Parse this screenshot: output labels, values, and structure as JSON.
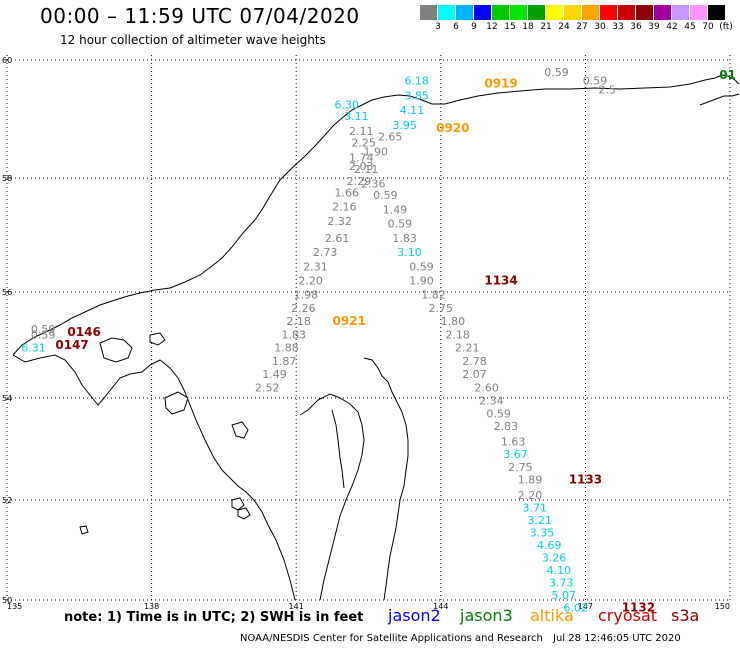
{
  "header": {
    "title": "00:00 – 11:59 UTC 07/04/2020",
    "subtitle": "12 hour collection of altimeter wave heights"
  },
  "colorbar": {
    "colors": [
      "#808080",
      "#00ffff",
      "#00b4ff",
      "#0000ff",
      "#00c800",
      "#00e600",
      "#00a000",
      "#ffff00",
      "#ffd700",
      "#ffa500",
      "#ff0000",
      "#c80000",
      "#8b0000",
      "#a000a0",
      "#c896ff",
      "#ff96ff",
      "#000000"
    ],
    "labels": [
      "3",
      "6",
      "9",
      "12",
      "15",
      "18",
      "21",
      "24",
      "27",
      "30",
      "33",
      "36",
      "39",
      "42",
      "45",
      "70",
      "(ft)"
    ]
  },
  "map": {
    "lat_labels": [
      "60",
      "58",
      "56",
      "54",
      "52",
      "50"
    ],
    "lon_labels": [
      "135",
      "138",
      "141",
      "144",
      "147",
      "150"
    ],
    "track_colors": {
      "gray": "#808080",
      "cyan": "#00d0e8",
      "orange": "#ff9900",
      "darkred": "#8b0000",
      "green": "#008000"
    },
    "points": [
      {
        "lon": 146.4,
        "lat": 59.8,
        "value": "0.59",
        "color": "gray"
      },
      {
        "lon": 147.2,
        "lat": 59.65,
        "value": "0.59",
        "color": "gray"
      },
      {
        "lon": 147.45,
        "lat": 59.5,
        "value": "2.5",
        "color": "gray"
      },
      {
        "lon": 143.5,
        "lat": 59.65,
        "value": "6.18",
        "color": "cyan"
      },
      {
        "lon": 143.5,
        "lat": 59.4,
        "value": "3.85",
        "color": "cyan"
      },
      {
        "lon": 143.4,
        "lat": 59.15,
        "value": "4.11",
        "color": "cyan"
      },
      {
        "lon": 142.05,
        "lat": 59.25,
        "value": "6.30",
        "color": "cyan"
      },
      {
        "lon": 142.25,
        "lat": 59.05,
        "value": "3.11",
        "color": "cyan"
      },
      {
        "lon": 143.25,
        "lat": 58.9,
        "value": "3.95",
        "color": "cyan"
      },
      {
        "lon": 142.35,
        "lat": 58.8,
        "value": "2.11",
        "color": "gray"
      },
      {
        "lon": 142.95,
        "lat": 58.7,
        "value": "2.65",
        "color": "gray"
      },
      {
        "lon": 142.4,
        "lat": 58.6,
        "value": "2.25",
        "color": "gray"
      },
      {
        "lon": 142.65,
        "lat": 58.45,
        "value": "1.90",
        "color": "gray"
      },
      {
        "lon": 142.35,
        "lat": 58.35,
        "value": "1.74",
        "color": "gray"
      },
      {
        "lon": 142.35,
        "lat": 58.2,
        "value": "2.03",
        "color": "gray"
      },
      {
        "lon": 142.45,
        "lat": 58.15,
        "value": "2.11",
        "color": "gray"
      },
      {
        "lon": 142.3,
        "lat": 57.95,
        "value": "2.29",
        "color": "gray"
      },
      {
        "lon": 142.6,
        "lat": 57.9,
        "value": "2.36",
        "color": "gray"
      },
      {
        "lon": 142.05,
        "lat": 57.75,
        "value": "1.66",
        "color": "gray"
      },
      {
        "lon": 142.85,
        "lat": 57.7,
        "value": "0.59",
        "color": "gray"
      },
      {
        "lon": 142.0,
        "lat": 57.5,
        "value": "2.16",
        "color": "gray"
      },
      {
        "lon": 143.05,
        "lat": 57.45,
        "value": "1.49",
        "color": "gray"
      },
      {
        "lon": 141.9,
        "lat": 57.25,
        "value": "2.32",
        "color": "gray"
      },
      {
        "lon": 143.15,
        "lat": 57.2,
        "value": "0.59",
        "color": "gray"
      },
      {
        "lon": 141.85,
        "lat": 56.95,
        "value": "2.61",
        "color": "gray"
      },
      {
        "lon": 143.25,
        "lat": 56.95,
        "value": "1.83",
        "color": "gray"
      },
      {
        "lon": 141.6,
        "lat": 56.7,
        "value": "2.73",
        "color": "gray"
      },
      {
        "lon": 143.35,
        "lat": 56.7,
        "value": "3.10",
        "color": "cyan"
      },
      {
        "lon": 141.4,
        "lat": 56.45,
        "value": "2.31",
        "color": "gray"
      },
      {
        "lon": 143.6,
        "lat": 56.45,
        "value": "0.59",
        "color": "gray"
      },
      {
        "lon": 141.3,
        "lat": 56.2,
        "value": "2.20",
        "color": "gray"
      },
      {
        "lon": 143.6,
        "lat": 56.2,
        "value": "1.90",
        "color": "gray"
      },
      {
        "lon": 141.2,
        "lat": 55.95,
        "value": "1.98",
        "color": "gray"
      },
      {
        "lon": 143.85,
        "lat": 55.95,
        "value": "1.82",
        "color": "gray"
      },
      {
        "lon": 141.15,
        "lat": 55.7,
        "value": "2.26",
        "color": "gray"
      },
      {
        "lon": 144.0,
        "lat": 55.7,
        "value": "2.75",
        "color": "gray"
      },
      {
        "lon": 141.05,
        "lat": 55.45,
        "value": "2.18",
        "color": "gray"
      },
      {
        "lon": 144.25,
        "lat": 55.45,
        "value": "1.80",
        "color": "gray"
      },
      {
        "lon": 140.95,
        "lat": 55.2,
        "value": "1.83",
        "color": "gray"
      },
      {
        "lon": 144.35,
        "lat": 55.2,
        "value": "2.18",
        "color": "gray"
      },
      {
        "lon": 140.8,
        "lat": 54.95,
        "value": "1.88",
        "color": "gray"
      },
      {
        "lon": 144.55,
        "lat": 54.95,
        "value": "2.21",
        "color": "gray"
      },
      {
        "lon": 140.75,
        "lat": 54.7,
        "value": "1.87",
        "color": "gray"
      },
      {
        "lon": 144.7,
        "lat": 54.7,
        "value": "2.78",
        "color": "gray"
      },
      {
        "lon": 140.55,
        "lat": 54.45,
        "value": "1.49",
        "color": "gray"
      },
      {
        "lon": 144.7,
        "lat": 54.45,
        "value": "2.07",
        "color": "gray"
      },
      {
        "lon": 140.4,
        "lat": 54.2,
        "value": "2.52",
        "color": "gray"
      },
      {
        "lon": 144.95,
        "lat": 54.2,
        "value": "2.60",
        "color": "gray"
      },
      {
        "lon": 145.05,
        "lat": 53.95,
        "value": "2.34",
        "color": "gray"
      },
      {
        "lon": 145.2,
        "lat": 53.7,
        "value": "0.59",
        "color": "gray"
      },
      {
        "lon": 145.35,
        "lat": 53.45,
        "value": "2.83",
        "color": "gray"
      },
      {
        "lon": 145.5,
        "lat": 53.15,
        "value": "1.63",
        "color": "gray"
      },
      {
        "lon": 145.55,
        "lat": 52.9,
        "value": "3.67",
        "color": "cyan"
      },
      {
        "lon": 145.65,
        "lat": 52.65,
        "value": "2.75",
        "color": "gray"
      },
      {
        "lon": 145.85,
        "lat": 52.4,
        "value": "1.89",
        "color": "gray"
      },
      {
        "lon": 145.85,
        "lat": 52.1,
        "value": "2.20",
        "color": "gray"
      },
      {
        "lon": 145.95,
        "lat": 51.85,
        "value": "3.71",
        "color": "cyan"
      },
      {
        "lon": 146.05,
        "lat": 51.6,
        "value": "3.21",
        "color": "cyan"
      },
      {
        "lon": 146.1,
        "lat": 51.35,
        "value": "3.35",
        "color": "cyan"
      },
      {
        "lon": 146.25,
        "lat": 51.1,
        "value": "4.69",
        "color": "cyan"
      },
      {
        "lon": 146.35,
        "lat": 50.85,
        "value": "3.26",
        "color": "cyan"
      },
      {
        "lon": 146.45,
        "lat": 50.6,
        "value": "4.10",
        "color": "cyan"
      },
      {
        "lon": 146.5,
        "lat": 50.35,
        "value": "3.73",
        "color": "cyan"
      },
      {
        "lon": 146.55,
        "lat": 50.1,
        "value": "5.07",
        "color": "cyan"
      },
      {
        "lon": 146.8,
        "lat": 49.85,
        "value": "6.02",
        "color": "cyan"
      },
      {
        "lon": 135.75,
        "lat": 55.3,
        "value": "0.59",
        "color": "gray"
      },
      {
        "lon": 135.75,
        "lat": 55.2,
        "value": "0.59",
        "color": "gray"
      },
      {
        "lon": 135.55,
        "lat": 54.95,
        "value": "6.31",
        "color": "cyan"
      }
    ],
    "timestamps": [
      {
        "lon": 145.25,
        "lat": 59.6,
        "value": "0919",
        "color": "orange"
      },
      {
        "lon": 144.25,
        "lat": 58.85,
        "value": "0920",
        "color": "orange"
      },
      {
        "lon": 142.1,
        "lat": 55.45,
        "value": "0921",
        "color": "orange"
      },
      {
        "lon": 145.25,
        "lat": 56.2,
        "value": "1134",
        "color": "darkred"
      },
      {
        "lon": 147.0,
        "lat": 52.4,
        "value": "1133",
        "color": "darkred"
      },
      {
        "lon": 148.1,
        "lat": 49.85,
        "value": "1132",
        "color": "darkred"
      },
      {
        "lon": 136.6,
        "lat": 55.25,
        "value": "0146",
        "color": "darkred"
      },
      {
        "lon": 136.35,
        "lat": 55.0,
        "value": "0147",
        "color": "darkred"
      },
      {
        "lon": 149.95,
        "lat": 59.75,
        "value": "01",
        "color": "green"
      }
    ]
  },
  "footer": {
    "note": "note: 1) Time is in UTC; 2) SWH is in feet",
    "legend": [
      {
        "label": "jason2",
        "color": "#0000ff"
      },
      {
        "label": "jason3",
        "color": "#008000"
      },
      {
        "label": "altika",
        "color": "#ff9900"
      },
      {
        "label": "cryosat",
        "color": "#c80000"
      },
      {
        "label": "s3a",
        "color": "#8b0000"
      }
    ],
    "credit": "NOAA/NESDIS Center for Satellite Applications and Research",
    "generated": "Jul 28 12:46:05 UTC 2020"
  }
}
